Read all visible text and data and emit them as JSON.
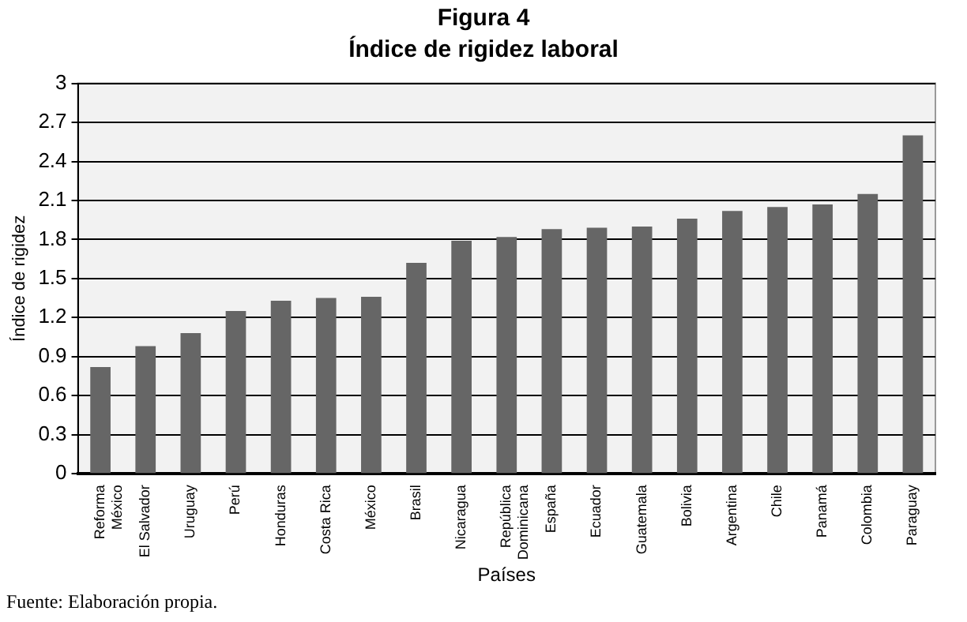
{
  "chart_data": {
    "type": "bar",
    "title": "Figura 4",
    "subtitle": "Índice de rigidez laboral",
    "xlabel": "Países",
    "ylabel": "Índice de rigidez",
    "categories": [
      "Reforma\nMéxico",
      "El Salvador",
      "Uruguay",
      "Perú",
      "Honduras",
      "Costa Rica",
      "México",
      "Brasil",
      "Nicaragua",
      "República\nDominicana",
      "España",
      "Ecuador",
      "Guatemala",
      "Bolivia",
      "Argentina",
      "Chile",
      "Panamá",
      "Colombia",
      "Paraguay"
    ],
    "values": [
      0.82,
      0.98,
      1.08,
      1.25,
      1.33,
      1.35,
      1.36,
      1.62,
      1.79,
      1.82,
      1.88,
      1.89,
      1.9,
      1.96,
      2.02,
      2.05,
      2.07,
      2.15,
      2.6
    ],
    "color": "#666666",
    "ylim": [
      0,
      3
    ],
    "yticks": [
      0,
      0.3,
      0.6,
      0.9,
      1.2,
      1.5,
      1.8,
      2.1,
      2.4,
      2.7,
      3
    ],
    "grid": "y",
    "legend": false,
    "annotations": [
      "Fuente: Elaboración propia."
    ]
  }
}
